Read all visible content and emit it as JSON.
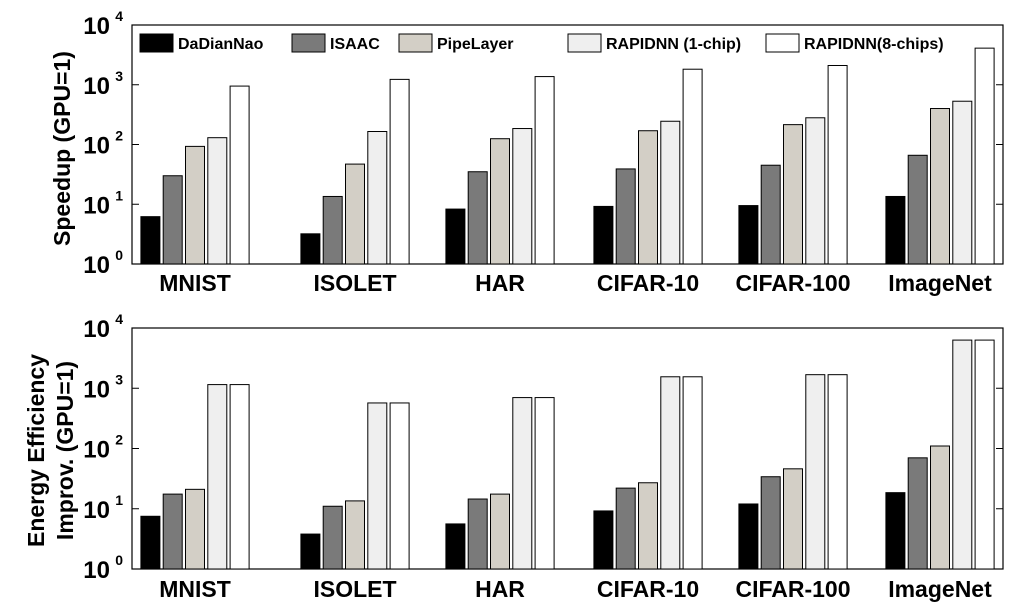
{
  "colors": {
    "DaDianNao": "#000000",
    "ISAAC": "#7a7a7a",
    "PipeLayer": "#d3cfc6",
    "RAPIDNN (1-chip)": "#efefef",
    "RAPIDNN(8-chips)": "#ffffff"
  },
  "chart_data": [
    {
      "type": "bar",
      "yscale": "log",
      "ylim": [
        1,
        10000
      ],
      "ylabel": "Speedup (GPU=1)",
      "ytick_base": "10",
      "ytick_exponents": [
        "0",
        "1",
        "2",
        "3",
        "4"
      ],
      "legend_position": "top",
      "categories": [
        "MNIST",
        "ISOLET",
        "HAR",
        "CIFAR-10",
        "CIFAR-100",
        "ImageNet"
      ],
      "series": [
        {
          "name": "DaDianNao",
          "values": [
            6.2,
            3.2,
            8.3,
            9.2,
            9.5,
            13.5
          ]
        },
        {
          "name": "ISAAC",
          "values": [
            30,
            13.5,
            35,
            39,
            45,
            66
          ]
        },
        {
          "name": "PipeLayer",
          "values": [
            93,
            47,
            125,
            170,
            215,
            400
          ]
        },
        {
          "name": "RAPIDNN (1-chip)",
          "values": [
            130,
            165,
            185,
            245,
            280,
            530
          ]
        },
        {
          "name": "RAPIDNN(8-chips)",
          "values": [
            950,
            1230,
            1370,
            1820,
            2100,
            4100
          ]
        }
      ]
    },
    {
      "type": "bar",
      "yscale": "log",
      "ylim": [
        1,
        10000
      ],
      "ylabel_lines": [
        "Energy Efficiency",
        "Improv. (GPU=1)"
      ],
      "ytick_base": "10",
      "ytick_exponents": [
        "0",
        "1",
        "2",
        "3",
        "4"
      ],
      "categories": [
        "MNIST",
        "ISOLET",
        "HAR",
        "CIFAR-10",
        "CIFAR-100",
        "ImageNet"
      ],
      "series": [
        {
          "name": "DaDianNao",
          "values": [
            7.5,
            3.8,
            5.6,
            9.2,
            12,
            18.5
          ]
        },
        {
          "name": "ISAAC",
          "values": [
            17.5,
            11,
            14.5,
            22,
            34,
            70
          ]
        },
        {
          "name": "PipeLayer",
          "values": [
            21,
            13.5,
            17.5,
            27,
            46,
            110
          ]
        },
        {
          "name": "RAPIDNN (1-chip)",
          "values": [
            1150,
            570,
            700,
            1550,
            1680,
            6300
          ]
        },
        {
          "name": "RAPIDNN(8-chips)",
          "values": [
            1150,
            570,
            700,
            1550,
            1680,
            6300
          ]
        }
      ]
    }
  ]
}
